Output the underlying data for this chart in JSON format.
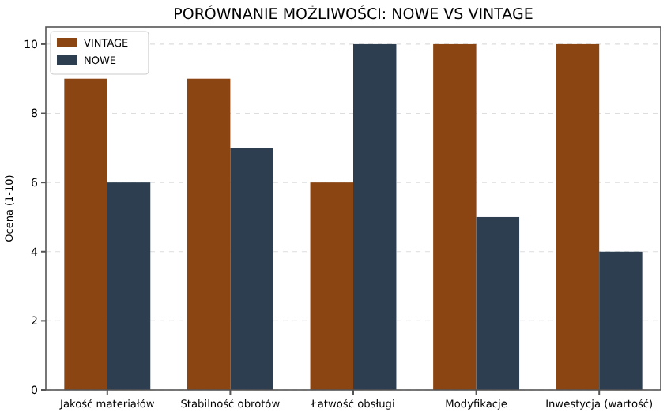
{
  "chart_data": {
    "type": "bar",
    "title": "PORÓWNANIE MOŻLIWOŚCI: NOWE VS VINTAGE",
    "ylabel": "Ocena (1-10)",
    "categories": [
      "Jakość materiałów",
      "Stabilność obrotów",
      "Łatwość obsługi",
      "Modyfikacje",
      "Inwestycja (wartość)"
    ],
    "series": [
      {
        "name": "VINTAGE",
        "color": "#8b4513",
        "values": [
          9,
          9,
          6,
          10,
          10
        ]
      },
      {
        "name": "NOWE",
        "color": "#2c3e50",
        "values": [
          6,
          7,
          10,
          5,
          4
        ]
      }
    ],
    "ylim": [
      0,
      10.5
    ],
    "yticks": [
      0,
      2,
      4,
      6,
      8,
      10
    ],
    "grid": "y",
    "legend": "top left"
  }
}
